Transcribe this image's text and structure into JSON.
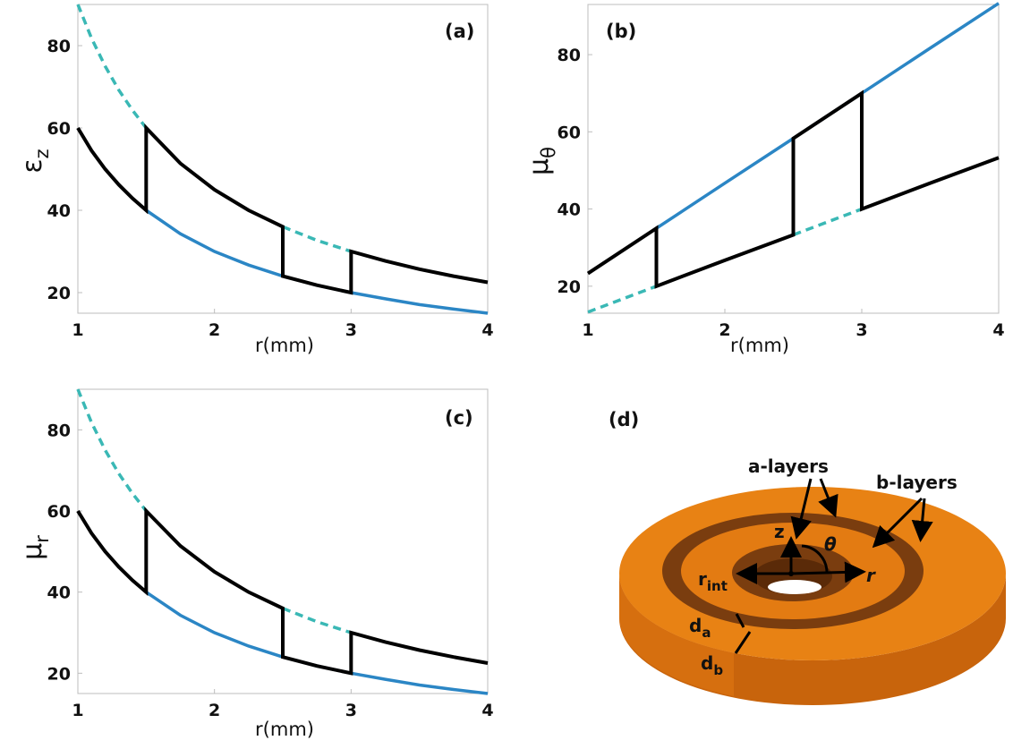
{
  "colors": {
    "black": "#000000",
    "blue": "#2b86c5",
    "teal": "#3ab8b5",
    "axis": "#bdbdbd",
    "ring_outer": "#e37b12",
    "ring_outer_light": "#f08b1c",
    "ring_a": "#7a3d0f",
    "ring_side": "#c8640c"
  },
  "chart_data": [
    {
      "id": "a",
      "type": "line",
      "panel_label": "(a)",
      "xlabel": "r(mm)",
      "ylabel_main": "ε",
      "ylabel_sub": "z",
      "xlim": [
        1,
        4
      ],
      "ylim": [
        15,
        90
      ],
      "xticks": [
        1,
        2,
        3,
        4
      ],
      "yticks": [
        20,
        40,
        60,
        80
      ],
      "series": [
        {
          "style": "solid",
          "color": "blue",
          "x": [
            1.5,
            1.75,
            2.0,
            2.25,
            2.5,
            2.75,
            3.0,
            3.25,
            3.5,
            3.75,
            4.0
          ],
          "y": [
            40,
            34.3,
            30,
            26.7,
            24,
            21.8,
            20,
            18.5,
            17.1,
            16,
            15
          ]
        },
        {
          "style": "dashed",
          "color": "teal",
          "x": [
            1.0,
            1.1,
            1.2,
            1.3,
            1.4,
            1.5
          ],
          "y": [
            90,
            81.8,
            75,
            69.2,
            64.3,
            60
          ]
        },
        {
          "style": "dashed",
          "color": "teal",
          "x": [
            2.5,
            2.75,
            3.0
          ],
          "y": [
            36,
            32.7,
            30
          ]
        },
        {
          "style": "solid",
          "color": "black",
          "x": [
            1.0,
            1.1,
            1.2,
            1.3,
            1.4,
            1.5,
            1.5,
            1.75,
            2.0,
            2.25,
            2.5,
            2.5,
            2.75,
            3.0,
            3.0,
            3.25,
            3.5,
            3.75,
            4.0
          ],
          "y": [
            60,
            54.5,
            50,
            46.2,
            42.9,
            40,
            60,
            51.4,
            45,
            40,
            36,
            24,
            21.8,
            20,
            30,
            27.7,
            25.7,
            24,
            22.5
          ]
        }
      ]
    },
    {
      "id": "b",
      "type": "line",
      "panel_label": "(b)",
      "xlabel": "r(mm)",
      "ylabel_main": "μ",
      "ylabel_sub": "θ",
      "xlim": [
        1,
        4
      ],
      "ylim": [
        13,
        93
      ],
      "xticks": [
        1,
        2,
        3,
        4
      ],
      "yticks": [
        20,
        40,
        60,
        80
      ],
      "series": [
        {
          "style": "solid",
          "color": "blue",
          "x": [
            1.5,
            2.0,
            2.5,
            3.0,
            3.5,
            4.0
          ],
          "y": [
            35,
            46.7,
            58.3,
            70,
            81.7,
            93.3
          ]
        },
        {
          "style": "dashed",
          "color": "teal",
          "x": [
            1.0,
            1.5
          ],
          "y": [
            13.3,
            20
          ]
        },
        {
          "style": "dashed",
          "color": "teal",
          "x": [
            2.5,
            3.0
          ],
          "y": [
            33.3,
            40
          ]
        },
        {
          "style": "solid",
          "color": "black",
          "x": [
            1.0,
            1.5,
            1.5,
            2.0,
            2.5,
            2.5,
            3.0,
            3.0,
            3.5,
            4.0
          ],
          "y": [
            23.3,
            35,
            20,
            26.7,
            33.3,
            58.3,
            70,
            40,
            46.7,
            53.3
          ]
        }
      ]
    },
    {
      "id": "c",
      "type": "line",
      "panel_label": "(c)",
      "xlabel": "r(mm)",
      "ylabel_main": "μ",
      "ylabel_sub": "r",
      "xlim": [
        1,
        4
      ],
      "ylim": [
        15,
        90
      ],
      "xticks": [
        1,
        2,
        3,
        4
      ],
      "yticks": [
        20,
        40,
        60,
        80
      ],
      "series": [
        {
          "style": "solid",
          "color": "blue",
          "x": [
            1.5,
            1.75,
            2.0,
            2.25,
            2.5,
            2.75,
            3.0,
            3.25,
            3.5,
            3.75,
            4.0
          ],
          "y": [
            40,
            34.3,
            30,
            26.7,
            24,
            21.8,
            20,
            18.5,
            17.1,
            16,
            15
          ]
        },
        {
          "style": "dashed",
          "color": "teal",
          "x": [
            1.0,
            1.1,
            1.2,
            1.3,
            1.4,
            1.5
          ],
          "y": [
            90,
            81.8,
            75,
            69.2,
            64.3,
            60
          ]
        },
        {
          "style": "dashed",
          "color": "teal",
          "x": [
            2.5,
            2.75,
            3.0
          ],
          "y": [
            36,
            32.7,
            30
          ]
        },
        {
          "style": "solid",
          "color": "black",
          "x": [
            1.0,
            1.1,
            1.2,
            1.3,
            1.4,
            1.5,
            1.5,
            1.75,
            2.0,
            2.25,
            2.5,
            2.5,
            2.75,
            3.0,
            3.0,
            3.25,
            3.5,
            3.75,
            4.0
          ],
          "y": [
            60,
            54.5,
            50,
            46.2,
            42.9,
            40,
            60,
            51.4,
            45,
            40,
            36,
            24,
            21.8,
            20,
            30,
            27.7,
            25.7,
            24,
            22.5
          ]
        }
      ]
    }
  ],
  "diagram": {
    "panel_label": "(d)",
    "a_layers": "a-layers",
    "b_layers": "b-layers",
    "z": "z",
    "theta": "θ",
    "r": "r",
    "r_int_main": "r",
    "r_int_sub": "int",
    "da_main": "d",
    "da_sub": "a",
    "db_main": "d",
    "db_sub": "b"
  }
}
